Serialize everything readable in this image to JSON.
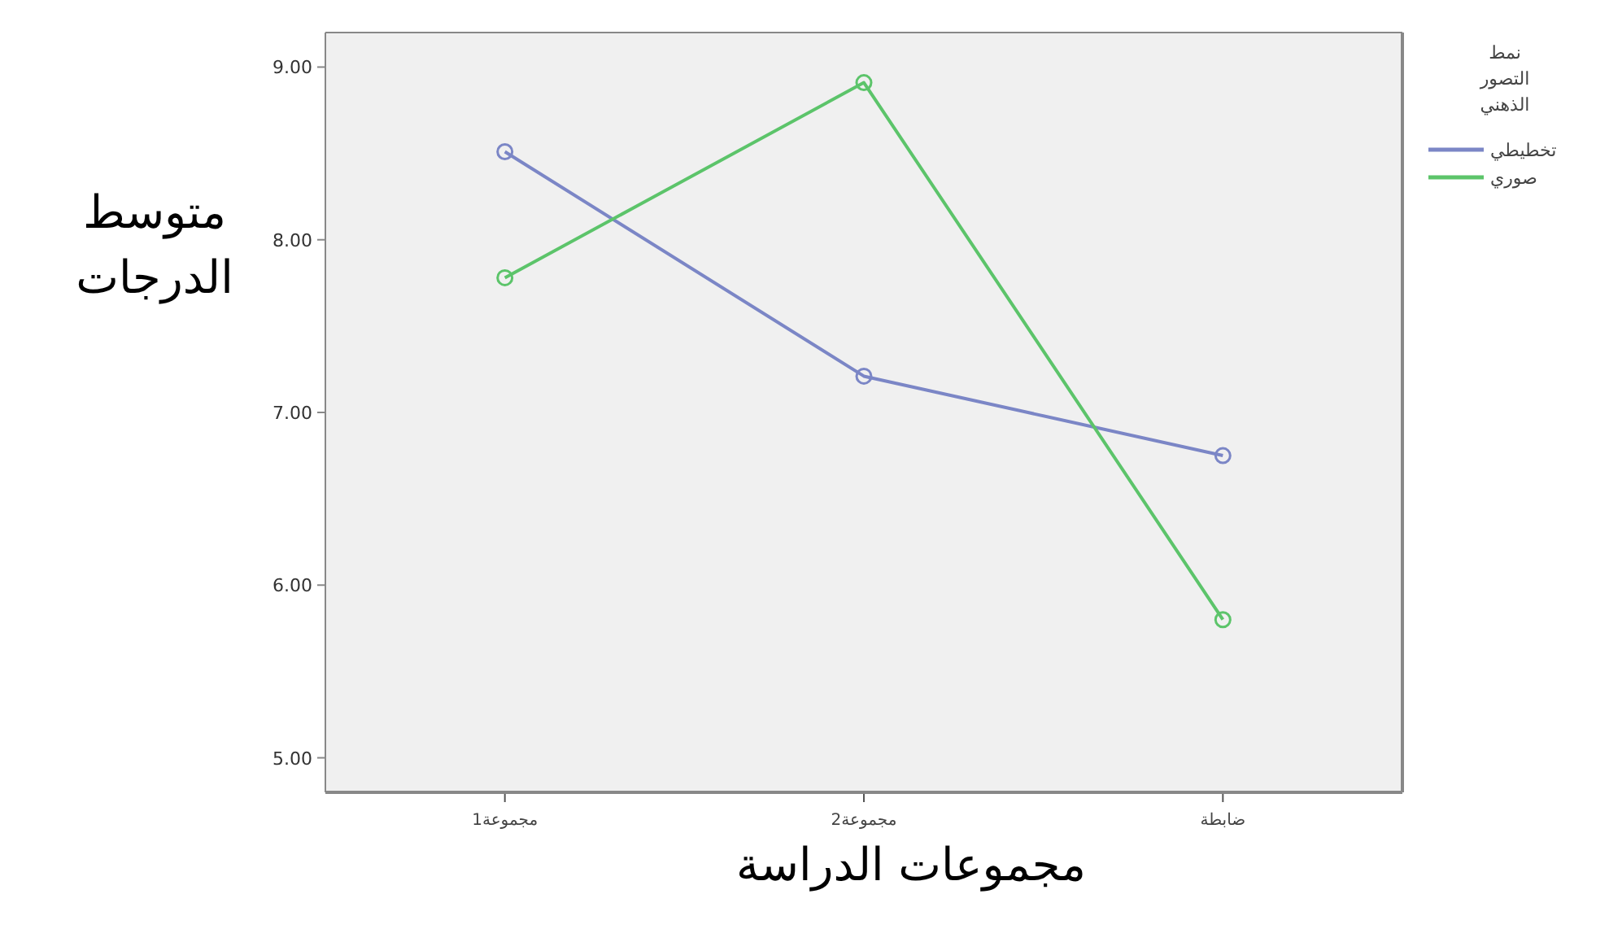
{
  "chart_data": {
    "type": "line",
    "xlabel": "مجموعات الدراسة",
    "ylabel": "متوسط\nالدرجات",
    "legend_title": "نمط\nالتصور\nالذهني",
    "categories": [
      "مجموعة1",
      "مجموعة2",
      "ضابطة"
    ],
    "series": [
      {
        "name": "تخطيطي",
        "color": "#7b86c6",
        "values": [
          8.51,
          7.21,
          6.75
        ]
      },
      {
        "name": "صوري",
        "color": "#5cc46a",
        "values": [
          7.78,
          8.91,
          5.8
        ]
      }
    ],
    "ylim": [
      4.8,
      9.2
    ],
    "yticks": [
      {
        "value": 5,
        "label": "5.00"
      },
      {
        "value": 6,
        "label": "6.00"
      },
      {
        "value": 7,
        "label": "7.00"
      },
      {
        "value": 8,
        "label": "8.00"
      },
      {
        "value": 9,
        "label": "9.00"
      }
    ],
    "marker": "circle",
    "line_style": "solid",
    "grid": false,
    "legend": "right"
  }
}
